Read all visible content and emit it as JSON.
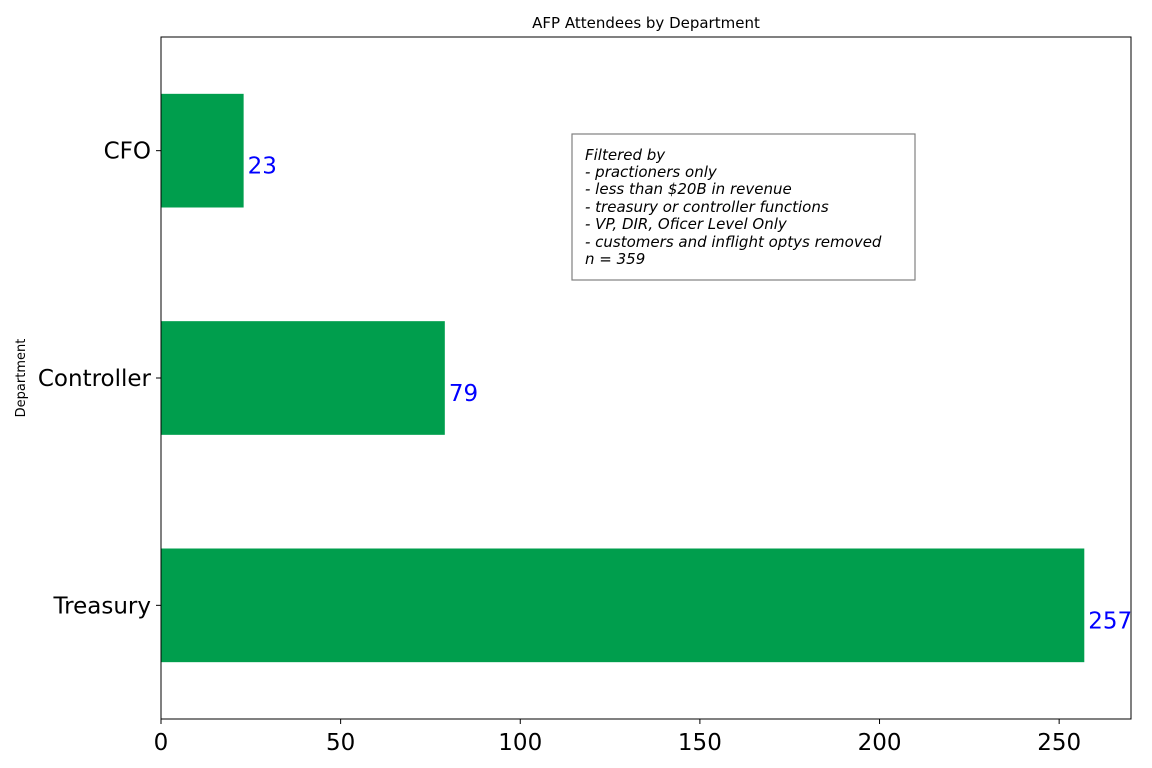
{
  "chart_data": {
    "type": "bar",
    "orientation": "horizontal",
    "title": "AFP Attendees by Department",
    "xlabel": "",
    "ylabel": "Department",
    "categories": [
      "Treasury",
      "Controller",
      "CFO"
    ],
    "values": [
      257,
      79,
      23
    ],
    "data_labels": [
      "257",
      "79",
      "23"
    ],
    "xlim": [
      0,
      270
    ],
    "xticks": [
      0,
      50,
      100,
      150,
      200,
      250
    ],
    "grid": false,
    "bar_color": "#009e4d",
    "label_color": "#0000ff",
    "annotation": {
      "lines": [
        "Filtered by",
        "- practioners only",
        "- less than $20B in revenue",
        "- treasury or controller functions",
        "- VP, DIR, Oficer Level Only",
        "- customers and inflight optys removed",
        "n = 359"
      ]
    }
  }
}
